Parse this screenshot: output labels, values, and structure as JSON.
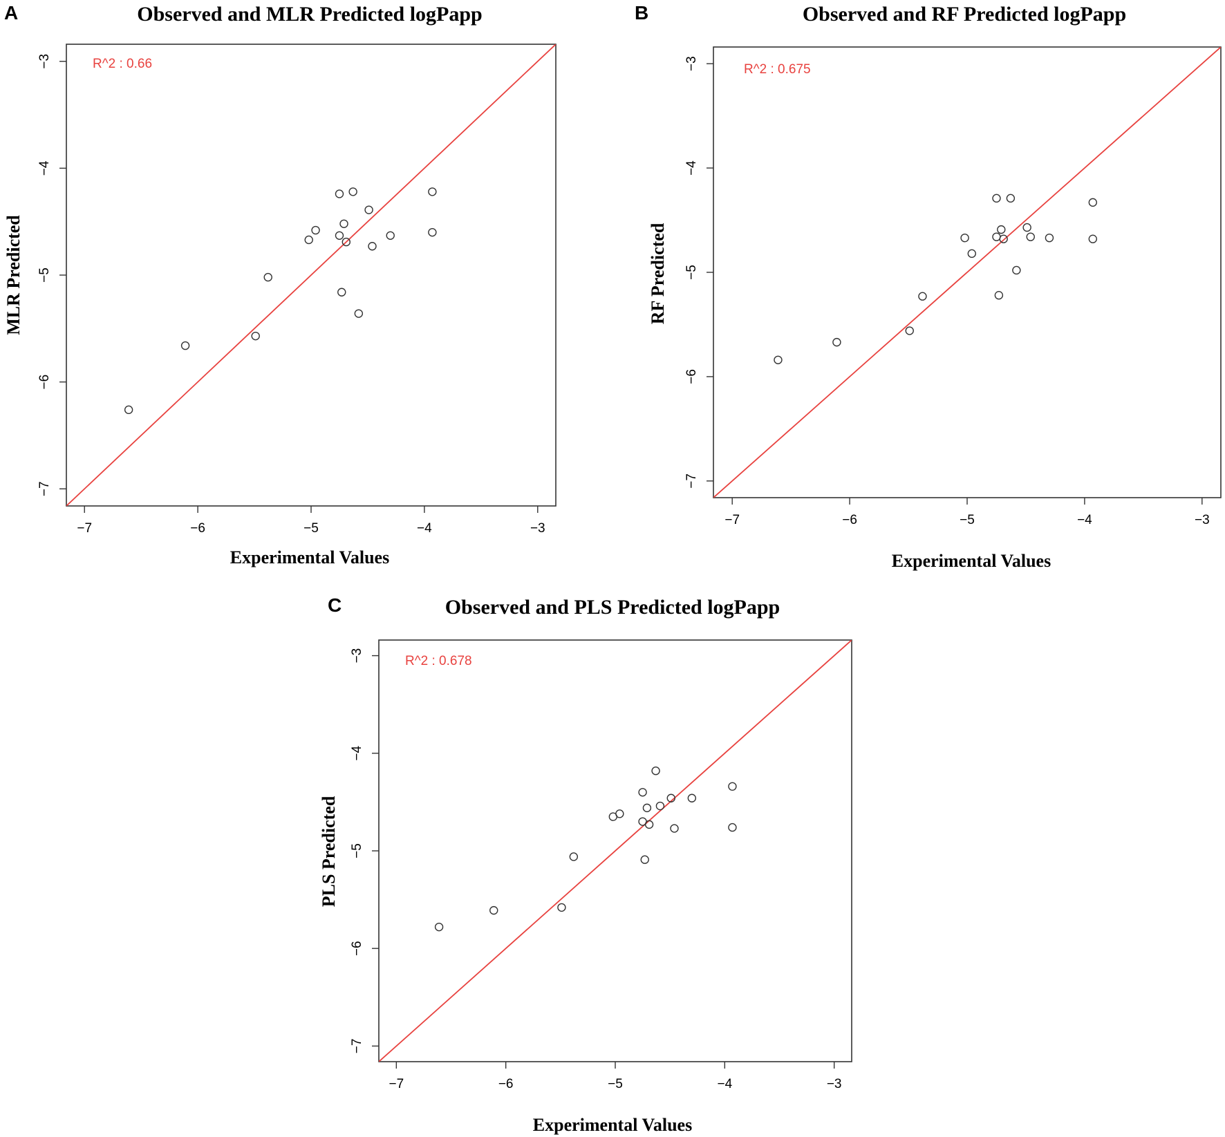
{
  "colors": {
    "reference_line": "#e8423f",
    "annotation": "#e8423f",
    "points": "#333333"
  },
  "chart_data": [
    {
      "panel": "A",
      "type": "scatter",
      "title": "Observed and MLR Predicted logPapp",
      "xlabel": "Experimental Values",
      "ylabel": "MLR Predicted",
      "annotation": "R^2 : 0.66",
      "xlim": [
        -7.16,
        -2.84
      ],
      "ylim": [
        -7.16,
        -2.84
      ],
      "xticks": [
        -7,
        -6,
        -5,
        -4,
        -3
      ],
      "yticks": [
        -7,
        -6,
        -5,
        -4,
        -3
      ],
      "xtick_labels": [
        "−7",
        "−6",
        "−5",
        "−4",
        "−3"
      ],
      "ytick_labels": [
        "−7",
        "−6",
        "−5",
        "−4",
        "−3"
      ],
      "reference_line": "y = x",
      "grid": false,
      "points": [
        {
          "x": -6.61,
          "y": -6.26
        },
        {
          "x": -6.11,
          "y": -5.66
        },
        {
          "x": -5.49,
          "y": -5.57
        },
        {
          "x": -5.38,
          "y": -5.02
        },
        {
          "x": -5.02,
          "y": -4.67
        },
        {
          "x": -4.96,
          "y": -4.58
        },
        {
          "x": -4.75,
          "y": -4.24
        },
        {
          "x": -4.63,
          "y": -4.22
        },
        {
          "x": -4.71,
          "y": -4.52
        },
        {
          "x": -4.75,
          "y": -4.63
        },
        {
          "x": -4.69,
          "y": -4.69
        },
        {
          "x": -4.49,
          "y": -4.39
        },
        {
          "x": -4.46,
          "y": -4.73
        },
        {
          "x": -4.3,
          "y": -4.63
        },
        {
          "x": -3.93,
          "y": -4.22
        },
        {
          "x": -3.93,
          "y": -4.6
        },
        {
          "x": -4.73,
          "y": -5.16
        },
        {
          "x": -4.58,
          "y": -5.36
        }
      ]
    },
    {
      "panel": "B",
      "type": "scatter",
      "title": "Observed and RF Predicted logPapp",
      "xlabel": "Experimental Values",
      "ylabel": "RF Predicted",
      "annotation": "R^2 : 0.675",
      "xlim": [
        -7.16,
        -2.84
      ],
      "ylim": [
        -7.16,
        -2.84
      ],
      "xticks": [
        -7,
        -6,
        -5,
        -4,
        -3
      ],
      "yticks": [
        -7,
        -6,
        -5,
        -4,
        -3
      ],
      "xtick_labels": [
        "−7",
        "−6",
        "−5",
        "−4",
        "−3"
      ],
      "ytick_labels": [
        "−7",
        "−6",
        "−5",
        "−4",
        "−3"
      ],
      "reference_line": "y = x",
      "grid": false,
      "points": [
        {
          "x": -6.61,
          "y": -5.84
        },
        {
          "x": -6.11,
          "y": -5.67
        },
        {
          "x": -5.49,
          "y": -5.56
        },
        {
          "x": -5.38,
          "y": -5.23
        },
        {
          "x": -5.02,
          "y": -4.67
        },
        {
          "x": -4.96,
          "y": -4.82
        },
        {
          "x": -4.75,
          "y": -4.29
        },
        {
          "x": -4.63,
          "y": -4.29
        },
        {
          "x": -4.71,
          "y": -4.59
        },
        {
          "x": -4.75,
          "y": -4.66
        },
        {
          "x": -4.69,
          "y": -4.68
        },
        {
          "x": -4.49,
          "y": -4.57
        },
        {
          "x": -4.46,
          "y": -4.66
        },
        {
          "x": -4.3,
          "y": -4.67
        },
        {
          "x": -3.93,
          "y": -4.33
        },
        {
          "x": -3.93,
          "y": -4.68
        },
        {
          "x": -4.73,
          "y": -5.22
        },
        {
          "x": -4.58,
          "y": -4.98
        }
      ]
    },
    {
      "panel": "C",
      "type": "scatter",
      "title": "Observed and PLS Predicted logPapp",
      "xlabel": "Experimental Values",
      "ylabel": "PLS Predicted",
      "annotation": "R^2 : 0.678",
      "xlim": [
        -7.16,
        -2.84
      ],
      "ylim": [
        -7.16,
        -2.84
      ],
      "xticks": [
        -7,
        -6,
        -5,
        -4,
        -3
      ],
      "yticks": [
        -7,
        -6,
        -5,
        -4,
        -3
      ],
      "xtick_labels": [
        "−7",
        "−6",
        "−5",
        "−4",
        "−3"
      ],
      "ytick_labels": [
        "−7",
        "−6",
        "−5",
        "−4",
        "−3"
      ],
      "reference_line": "y = x",
      "grid": false,
      "points": [
        {
          "x": -6.61,
          "y": -5.78
        },
        {
          "x": -6.11,
          "y": -5.61
        },
        {
          "x": -5.49,
          "y": -5.58
        },
        {
          "x": -5.38,
          "y": -5.06
        },
        {
          "x": -5.02,
          "y": -4.65
        },
        {
          "x": -4.96,
          "y": -4.62
        },
        {
          "x": -4.75,
          "y": -4.4
        },
        {
          "x": -4.63,
          "y": -4.18
        },
        {
          "x": -4.71,
          "y": -4.56
        },
        {
          "x": -4.75,
          "y": -4.7
        },
        {
          "x": -4.69,
          "y": -4.73
        },
        {
          "x": -4.59,
          "y": -4.54
        },
        {
          "x": -4.49,
          "y": -4.46
        },
        {
          "x": -4.46,
          "y": -4.77
        },
        {
          "x": -4.3,
          "y": -4.46
        },
        {
          "x": -3.93,
          "y": -4.34
        },
        {
          "x": -3.93,
          "y": -4.76
        },
        {
          "x": -4.73,
          "y": -5.09
        }
      ]
    }
  ]
}
